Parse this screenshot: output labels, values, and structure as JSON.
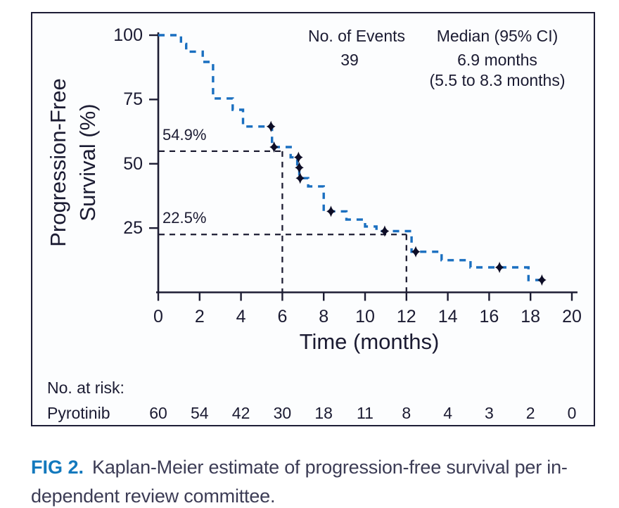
{
  "figure": {
    "y_axis_label_line1": "Progression-Free",
    "y_axis_label_line2": "Survival (%)",
    "x_axis_label": "Time (months)",
    "events_header": "No. of Events",
    "events_value": "39",
    "median_header": "Median (95% CI)",
    "median_value": "6.9 months",
    "median_ci": "(5.5 to 8.3 months)",
    "landmark_6mo_label": "54.9%",
    "landmark_12mo_label": "22.5%",
    "at_risk_header": "No. at risk:",
    "at_risk_group": "Pyrotinib"
  },
  "caption": {
    "tag": "FIG 2.",
    "line1": "Kaplan-Meier estimate of progression-free survival per in-",
    "line2": "dependent review committee."
  },
  "colors": {
    "curve": "#1a6fc0",
    "axis": "#1d1d33",
    "censor": "#0d0d26",
    "refline": "#1d1d33",
    "fig_tag": "#1379bd",
    "caption_text": "#3c3c55"
  },
  "chart_data": {
    "type": "line",
    "subtype": "kaplan-meier-step",
    "xlabel": "Time (months)",
    "ylabel": "Progression-Free Survival (%)",
    "xlim": [
      0,
      20
    ],
    "ylim": [
      0,
      100
    ],
    "x_ticks": [
      0,
      2,
      4,
      6,
      8,
      10,
      12,
      14,
      16,
      18,
      20
    ],
    "y_ticks": [
      100,
      75,
      50,
      25
    ],
    "grid": false,
    "no_of_events": 39,
    "median_months": 6.9,
    "median_ci_months": [
      5.5,
      8.3
    ],
    "series": [
      {
        "name": "Pyrotinib",
        "style": "dashed-step",
        "points": [
          [
            0,
            100
          ],
          [
            1.1,
            100
          ],
          [
            1.1,
            96.6
          ],
          [
            1.35,
            96.6
          ],
          [
            1.35,
            93.6
          ],
          [
            2.15,
            93.6
          ],
          [
            2.15,
            89.6
          ],
          [
            2.65,
            89.6
          ],
          [
            2.65,
            75.4
          ],
          [
            3.6,
            75.4
          ],
          [
            3.6,
            71.0
          ],
          [
            4.1,
            71.0
          ],
          [
            4.1,
            64.5
          ],
          [
            5.5,
            64.5
          ],
          [
            5.5,
            56.5
          ],
          [
            6.4,
            56.5
          ],
          [
            6.4,
            52.5
          ],
          [
            6.72,
            52.5
          ],
          [
            6.72,
            48.5
          ],
          [
            6.82,
            48.5
          ],
          [
            6.82,
            44.4
          ],
          [
            7.25,
            44.4
          ],
          [
            7.25,
            41.2
          ],
          [
            8.0,
            41.2
          ],
          [
            8.0,
            31.5
          ],
          [
            9.1,
            31.5
          ],
          [
            9.1,
            28.3
          ],
          [
            10.0,
            28.3
          ],
          [
            10.0,
            25.6
          ],
          [
            10.55,
            25.6
          ],
          [
            10.55,
            23.8
          ],
          [
            12.25,
            23.8
          ],
          [
            12.25,
            15.8
          ],
          [
            13.7,
            15.8
          ],
          [
            13.7,
            12.5
          ],
          [
            15.1,
            12.5
          ],
          [
            15.1,
            9.7
          ],
          [
            17.9,
            9.7
          ],
          [
            17.9,
            4.8
          ],
          [
            18.75,
            4.8
          ]
        ]
      }
    ],
    "censor_marks": [
      [
        5.45,
        64.5
      ],
      [
        5.6,
        56.5
      ],
      [
        6.78,
        52.5
      ],
      [
        6.82,
        48.5
      ],
      [
        6.86,
        44.4
      ],
      [
        8.35,
        31.5
      ],
      [
        10.95,
        23.8
      ],
      [
        12.45,
        15.8
      ],
      [
        16.5,
        9.7
      ],
      [
        18.55,
        4.8
      ]
    ],
    "reference_lines": [
      {
        "x": 6,
        "y": 54.9,
        "label": "54.9%"
      },
      {
        "x": 12,
        "y": 22.5,
        "label": "22.5%"
      }
    ],
    "at_risk": {
      "group": "Pyrotinib",
      "times": [
        0,
        2,
        4,
        6,
        8,
        10,
        12,
        14,
        16,
        18,
        20
      ],
      "counts": [
        60,
        54,
        42,
        30,
        18,
        11,
        8,
        4,
        3,
        2,
        0
      ]
    }
  }
}
